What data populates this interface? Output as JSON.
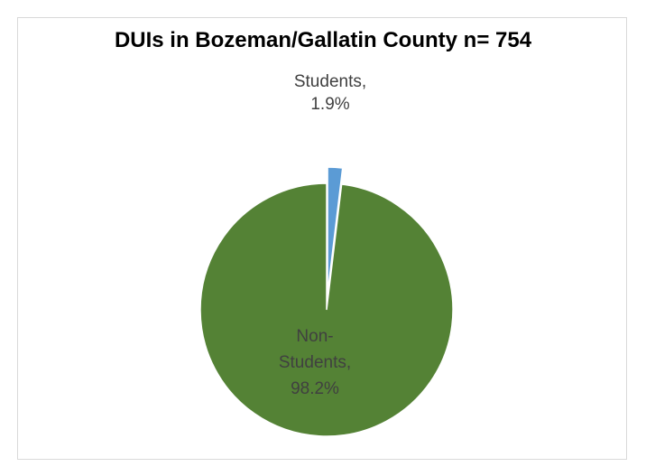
{
  "chart_data": {
    "type": "pie",
    "title": "DUIs in Bozeman/Gallatin County n= 754",
    "categories": [
      "Students",
      "Non-Students"
    ],
    "values": [
      1.9,
      98.2
    ],
    "colors": [
      "#5b9bd5",
      "#548235"
    ],
    "labels": [
      {
        "lines": [
          "Students,",
          "1.9%"
        ]
      },
      {
        "lines": [
          "Non-",
          "Students,",
          "98.2%"
        ]
      }
    ],
    "legend": "none"
  }
}
